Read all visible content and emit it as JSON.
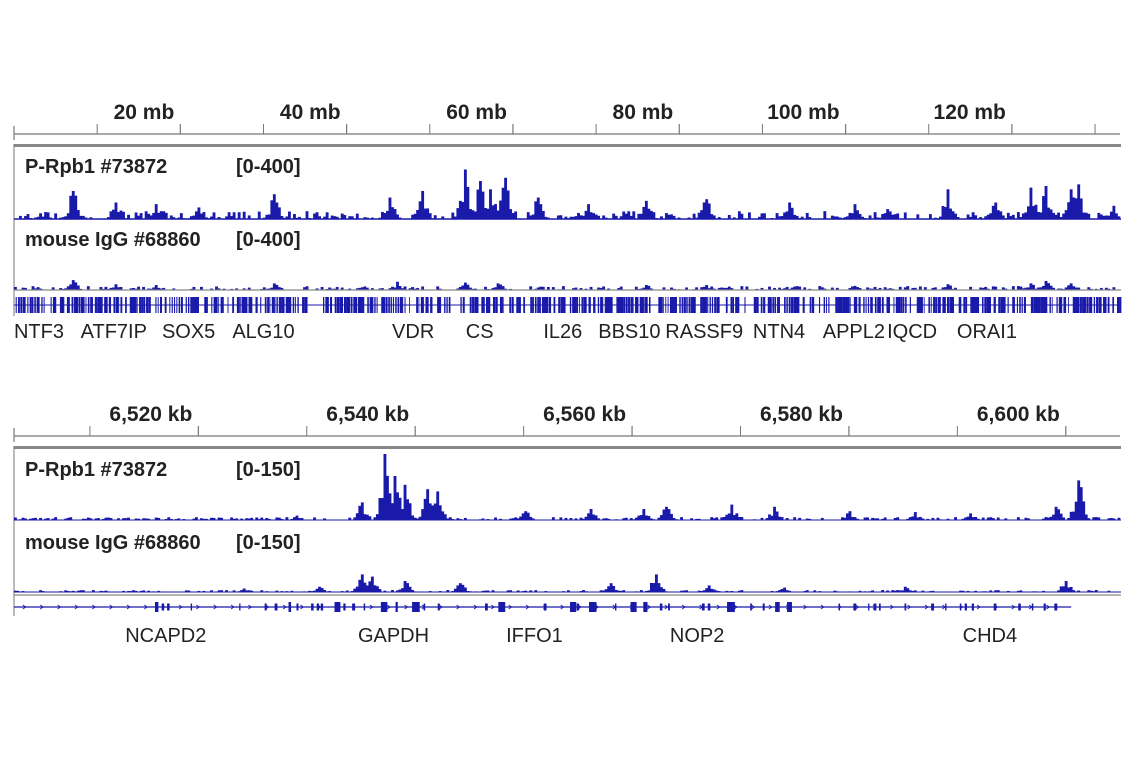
{
  "colors": {
    "signal": "#1a1aaa",
    "axis": "#777777",
    "text": "#222222"
  },
  "panels": [
    {
      "id": "genome",
      "ruler": {
        "unit": "mb",
        "ticks": [
          "20 mb",
          "40 mb",
          "60 mb",
          "80 mb",
          "100 mb",
          "120 mb"
        ]
      },
      "tracks": [
        {
          "name": "P-Rpb1 #73872",
          "range": "[0-400]"
        },
        {
          "name": "mouse IgG #68860",
          "range": "[0-400]"
        }
      ],
      "genes": [
        "NTF3",
        "ATF7IP",
        "SOX5",
        "ALG10",
        "VDR",
        "CS",
        "IL26",
        "BBS10",
        "RASSF9",
        "NTN4",
        "APPL2",
        "IQCD",
        "ORAI1"
      ]
    },
    {
      "id": "locus",
      "ruler": {
        "unit": "kb",
        "ticks": [
          "6,520 kb",
          "6,540 kb",
          "6,560 kb",
          "6,580 kb",
          "6,600 kb"
        ]
      },
      "tracks": [
        {
          "name": "P-Rpb1 #73872",
          "range": "[0-150]"
        },
        {
          "name": "mouse IgG #68860",
          "range": "[0-150]"
        }
      ],
      "genes": [
        "NCAPD2",
        "GAPDH",
        "IFFO1",
        "NOP2",
        "CHD4"
      ]
    }
  ],
  "chart_data": [
    {
      "type": "area",
      "title": "",
      "x_unit": "mb",
      "xlim": [
        0,
        133
      ],
      "x_ticks": [
        20,
        40,
        60,
        80,
        100,
        120
      ],
      "ylim": [
        0,
        400
      ],
      "peaks_note": "approximate signal peaks read from image",
      "series": [
        {
          "name": "P-Rpb1 #73872",
          "peaks": [
            [
              7,
              170
            ],
            [
              12,
              100
            ],
            [
              17,
              90
            ],
            [
              22,
              70
            ],
            [
              31,
              150
            ],
            [
              45,
              130
            ],
            [
              49,
              170
            ],
            [
              54,
              300
            ],
            [
              56,
              230
            ],
            [
              57,
              180
            ],
            [
              59,
              250
            ],
            [
              63,
              130
            ],
            [
              69,
              90
            ],
            [
              76,
              110
            ],
            [
              83,
              120
            ],
            [
              93,
              100
            ],
            [
              101,
              90
            ],
            [
              105,
              60
            ],
            [
              112,
              180
            ],
            [
              118,
              100
            ],
            [
              122,
              190
            ],
            [
              124,
              200
            ],
            [
              127,
              180
            ],
            [
              128,
              210
            ],
            [
              132,
              80
            ]
          ]
        },
        {
          "name": "mouse IgG #68860",
          "peaks": [
            [
              7,
              60
            ],
            [
              12,
              35
            ],
            [
              17,
              30
            ],
            [
              31,
              40
            ],
            [
              46,
              50
            ],
            [
              54,
              45
            ],
            [
              58,
              40
            ],
            [
              76,
              30
            ],
            [
              83,
              30
            ],
            [
              101,
              25
            ],
            [
              112,
              35
            ],
            [
              122,
              40
            ],
            [
              124,
              55
            ],
            [
              127,
              40
            ]
          ]
        }
      ],
      "genes": [
        {
          "label": "NTF3",
          "x": 3
        },
        {
          "label": "ATF7IP",
          "x": 12
        },
        {
          "label": "SOX5",
          "x": 21
        },
        {
          "label": "ALG10",
          "x": 30
        },
        {
          "label": "VDR",
          "x": 48
        },
        {
          "label": "CS",
          "x": 56
        },
        {
          "label": "IL26",
          "x": 66
        },
        {
          "label": "BBS10",
          "x": 74
        },
        {
          "label": "RASSF9",
          "x": 83
        },
        {
          "label": "NTN4",
          "x": 92
        },
        {
          "label": "APPL2",
          "x": 101
        },
        {
          "label": "IQCD",
          "x": 108
        },
        {
          "label": "ORAI1",
          "x": 117
        }
      ]
    },
    {
      "type": "area",
      "title": "",
      "x_unit": "kb",
      "xlim": [
        6503,
        6605
      ],
      "x_ticks": [
        6520,
        6540,
        6560,
        6580,
        6600
      ],
      "ylim": [
        0,
        150
      ],
      "series": [
        {
          "name": "P-Rpb1 #73872",
          "peaks": [
            [
              6529,
              10
            ],
            [
              6535,
              40
            ],
            [
              6537,
              150
            ],
            [
              6538,
              100
            ],
            [
              6539,
              80
            ],
            [
              6541,
              70
            ],
            [
              6542,
              65
            ],
            [
              6550,
              20
            ],
            [
              6556,
              25
            ],
            [
              6561,
              25
            ],
            [
              6563,
              30
            ],
            [
              6569,
              35
            ],
            [
              6573,
              30
            ],
            [
              6580,
              20
            ],
            [
              6586,
              18
            ],
            [
              6591,
              15
            ],
            [
              6599,
              30
            ],
            [
              6601,
              90
            ]
          ]
        },
        {
          "name": "mouse IgG #68860",
          "peaks": [
            [
              6524,
              8
            ],
            [
              6531,
              12
            ],
            [
              6535,
              40
            ],
            [
              6536,
              35
            ],
            [
              6539,
              25
            ],
            [
              6544,
              20
            ],
            [
              6558,
              20
            ],
            [
              6562,
              40
            ],
            [
              6567,
              15
            ],
            [
              6574,
              10
            ],
            [
              6585,
              12
            ],
            [
              6600,
              25
            ]
          ]
        }
      ],
      "genes": [
        {
          "label": "NCAPD2",
          "x": 6517
        },
        {
          "label": "GAPDH",
          "x": 6538
        },
        {
          "label": "IFFO1",
          "x": 6551
        },
        {
          "label": "NOP2",
          "x": 6566
        },
        {
          "label": "CHD4",
          "x": 6593
        }
      ]
    }
  ]
}
